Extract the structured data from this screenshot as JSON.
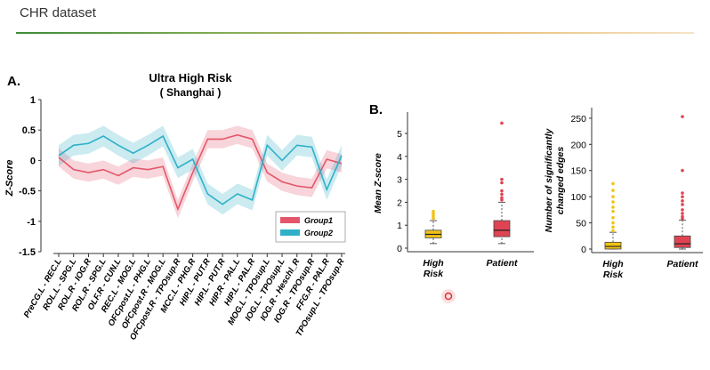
{
  "slide": {
    "title": "CHR dataset"
  },
  "colors": {
    "group1": "#e4566a",
    "group2": "#2fb0c8",
    "high_risk_box": "#f2c316",
    "patient_box": "#e04452",
    "cursor": "#e03030"
  },
  "chart_data": [
    {
      "panel_label": "A.",
      "type": "line",
      "title": "Ultra High Risk",
      "subtitle": "( Shanghai )",
      "xlabel": "",
      "ylabel": "Z-Score",
      "ylim": [
        -1.5,
        1
      ],
      "yticks": [
        1,
        0.5,
        0,
        -0.5,
        -1,
        -1.5
      ],
      "categories": [
        "PreCG.L - REC.L",
        "ROL.L - SPG.L",
        "ROL.R - IOG.R",
        "ROL.R - SPG.L",
        "OLF.R - CUN.L",
        "REC.L - MOG.L",
        "OFCpost.L - PHG.L",
        "OFCpost.R - MOG.L",
        "OFCpost.R - TPOsup.R",
        "MCC.L - PHG.R",
        "HIP.L - PUT.R",
        "HIP.L - PUT.R",
        "HIP.R - PAL.L",
        "HIP.L - PAL.R",
        "MOG.L - TPOsup.L",
        "IOG.L - TPOsup.L",
        "IOG.R - Heschl_R",
        "IOG.R - TPOsup.R",
        "FFG.R - PAL.R",
        "TPOsup.L - TPOsup.R"
      ],
      "series": [
        {
          "name": "Group1",
          "color": "#e4566a",
          "values": [
            0.05,
            -0.15,
            -0.2,
            -0.15,
            -0.25,
            -0.12,
            -0.15,
            -0.1,
            -0.8,
            -0.2,
            0.35,
            0.35,
            0.42,
            0.35,
            -0.2,
            -0.35,
            -0.42,
            -0.45,
            0.02,
            -0.05
          ],
          "band": 0.15
        },
        {
          "name": "Group2",
          "color": "#2fb0c8",
          "values": [
            0.08,
            0.25,
            0.28,
            0.4,
            0.25,
            0.12,
            0.25,
            0.4,
            -0.12,
            0.02,
            -0.55,
            -0.72,
            -0.55,
            -0.65,
            0.25,
            0.0,
            0.25,
            0.22,
            -0.48,
            0.08
          ],
          "band": 0.17
        }
      ],
      "legend": {
        "placement": "lower-right",
        "entries": [
          "Group1",
          "Group2"
        ]
      }
    },
    {
      "panel_label": "B.",
      "type": "box",
      "ylabel": "Mean Z-score",
      "ylim": [
        0,
        5.7
      ],
      "yticks": [
        0,
        1,
        2,
        3,
        4,
        5
      ],
      "categories": [
        "High Risk",
        "Patient"
      ],
      "boxes": [
        {
          "name": "High Risk",
          "color": "#f2c316",
          "q1": 0.45,
          "median": 0.6,
          "q3": 0.78,
          "whisker_low": 0.2,
          "whisker_high": 1.2,
          "outliers": [
            1.3,
            1.4,
            1.5,
            1.6
          ]
        },
        {
          "name": "Patient",
          "color": "#e04452",
          "q1": 0.5,
          "median": 0.78,
          "q3": 1.2,
          "whisker_low": 0.2,
          "whisker_high": 2.0,
          "outliers": [
            2.1,
            2.2,
            2.35,
            2.5,
            2.85,
            3.0,
            5.45
          ]
        }
      ]
    },
    {
      "type": "box",
      "ylabel": "Number of significantly changed edges",
      "ylim": [
        0,
        260
      ],
      "yticks": [
        0,
        50,
        100,
        150,
        200,
        250
      ],
      "categories": [
        "High Risk",
        "Patient"
      ],
      "boxes": [
        {
          "name": "High Risk",
          "color": "#f2c316",
          "q1": 0,
          "median": 5,
          "q3": 13,
          "whisker_low": 0,
          "whisker_high": 32,
          "outliers": [
            35,
            42,
            50,
            60,
            72,
            80,
            90,
            100,
            112,
            125
          ]
        },
        {
          "name": "Patient",
          "color": "#e04452",
          "q1": 3,
          "median": 10,
          "q3": 25,
          "whisker_low": 0,
          "whisker_high": 55,
          "outliers": [
            58,
            62,
            68,
            75,
            85,
            92,
            100,
            107,
            150,
            253
          ]
        }
      ]
    }
  ]
}
